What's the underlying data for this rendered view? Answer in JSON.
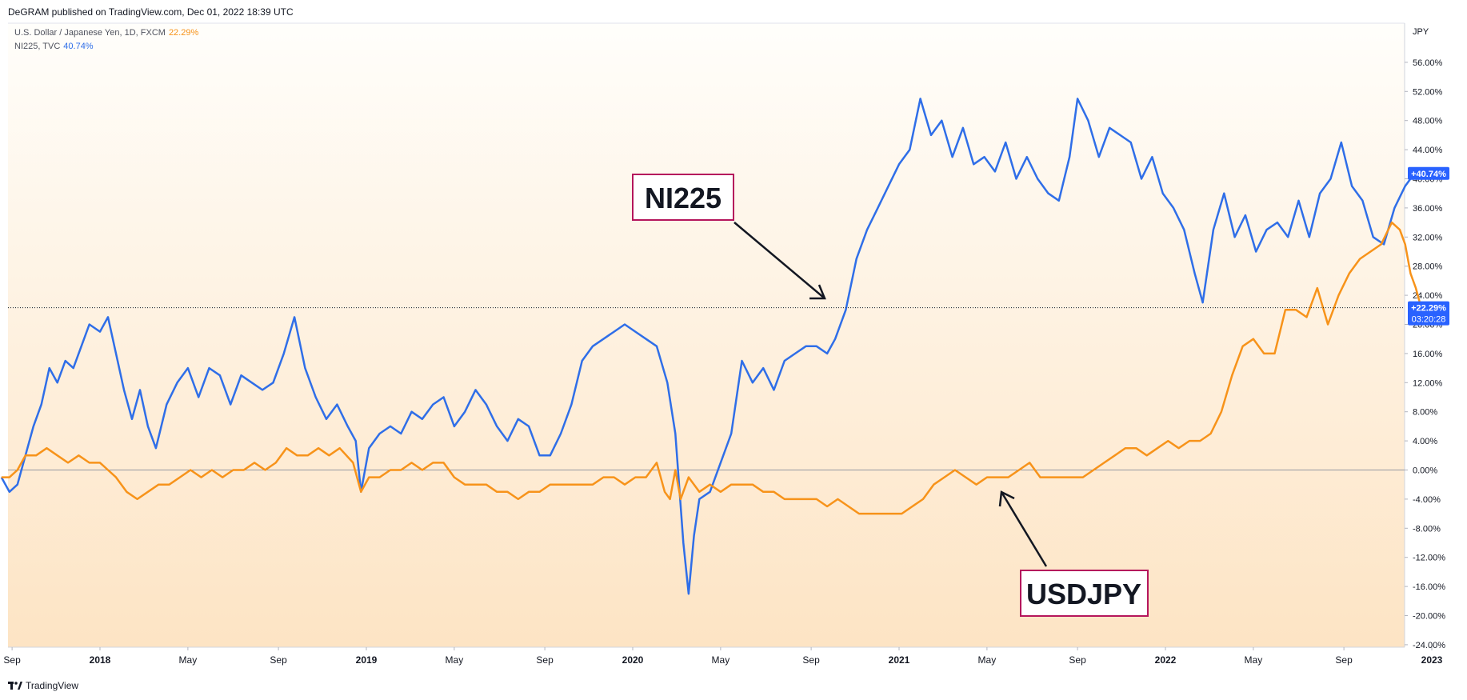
{
  "header": {
    "published": "DeGRAM published on TradingView.com, Dec 01, 2022 18:39 UTC"
  },
  "legend": [
    {
      "label": "U.S. Dollar / Japanese Yen, 1D, FXCM",
      "value": "22.29%",
      "color": "#f7931a"
    },
    {
      "label": "NI225, TVC",
      "value": "40.74%",
      "color": "#2f6ee8"
    }
  ],
  "axis": {
    "currency": "JPY"
  },
  "badges": {
    "ni225": "+40.74%",
    "usdjpy": "+22.29%",
    "countdown": "03:20:28"
  },
  "annotations": {
    "ni225": "NI225",
    "usdjpy": "USDJPY"
  },
  "footer": {
    "brand": "TradingView"
  },
  "colors": {
    "ni225": "#2f6ee8",
    "usdjpy": "#f7931a",
    "annotation_border": "#b5165c"
  },
  "chart_data": {
    "type": "line",
    "ylim": [
      -24,
      60
    ],
    "yticks": [
      "56.00%",
      "52.00%",
      "48.00%",
      "44.00%",
      "40.00%",
      "36.00%",
      "32.00%",
      "28.00%",
      "24.00%",
      "20.00%",
      "16.00%",
      "12.00%",
      "8.00%",
      "4.00%",
      "0.00%",
      "-4.00%",
      "-8.00%",
      "-12.00%",
      "-16.00%",
      "-20.00%",
      "-24.00%"
    ],
    "ytick_values": [
      56,
      52,
      48,
      44,
      40,
      36,
      32,
      28,
      24,
      20,
      16,
      12,
      8,
      4,
      0,
      -4,
      -8,
      -12,
      -16,
      -20,
      -24
    ],
    "xticks": [
      {
        "label": "Sep",
        "t": 2017.67
      },
      {
        "label": "2018",
        "t": 2018.0,
        "bold": true
      },
      {
        "label": "May",
        "t": 2018.33
      },
      {
        "label": "Sep",
        "t": 2018.67
      },
      {
        "label": "2019",
        "t": 2019.0,
        "bold": true
      },
      {
        "label": "May",
        "t": 2019.33
      },
      {
        "label": "Sep",
        "t": 2019.67
      },
      {
        "label": "2020",
        "t": 2020.0,
        "bold": true
      },
      {
        "label": "May",
        "t": 2020.33
      },
      {
        "label": "Sep",
        "t": 2020.67
      },
      {
        "label": "2021",
        "t": 2021.0,
        "bold": true
      },
      {
        "label": "May",
        "t": 2021.33
      },
      {
        "label": "Sep",
        "t": 2021.67
      },
      {
        "label": "2022",
        "t": 2022.0,
        "bold": true
      },
      {
        "label": "May",
        "t": 2022.33
      },
      {
        "label": "Sep",
        "t": 2022.67
      },
      {
        "label": "2023",
        "t": 2023.0,
        "bold": true
      }
    ],
    "series": [
      {
        "name": "NI225",
        "points": [
          [
            2017.63,
            -1
          ],
          [
            2017.66,
            -3
          ],
          [
            2017.69,
            -2
          ],
          [
            2017.72,
            2
          ],
          [
            2017.75,
            6
          ],
          [
            2017.78,
            9
          ],
          [
            2017.81,
            14
          ],
          [
            2017.84,
            12
          ],
          [
            2017.87,
            15
          ],
          [
            2017.9,
            14
          ],
          [
            2017.93,
            17
          ],
          [
            2017.96,
            20
          ],
          [
            2018.0,
            19
          ],
          [
            2018.03,
            21
          ],
          [
            2018.06,
            16
          ],
          [
            2018.09,
            11
          ],
          [
            2018.12,
            7
          ],
          [
            2018.15,
            11
          ],
          [
            2018.18,
            6
          ],
          [
            2018.21,
            3
          ],
          [
            2018.25,
            9
          ],
          [
            2018.29,
            12
          ],
          [
            2018.33,
            14
          ],
          [
            2018.37,
            10
          ],
          [
            2018.41,
            14
          ],
          [
            2018.45,
            13
          ],
          [
            2018.49,
            9
          ],
          [
            2018.53,
            13
          ],
          [
            2018.57,
            12
          ],
          [
            2018.61,
            11
          ],
          [
            2018.65,
            12
          ],
          [
            2018.69,
            16
          ],
          [
            2018.73,
            21
          ],
          [
            2018.77,
            14
          ],
          [
            2018.81,
            10
          ],
          [
            2018.85,
            7
          ],
          [
            2018.89,
            9
          ],
          [
            2018.93,
            6
          ],
          [
            2018.96,
            4
          ],
          [
            2018.98,
            -3
          ],
          [
            2019.01,
            3
          ],
          [
            2019.05,
            5
          ],
          [
            2019.09,
            6
          ],
          [
            2019.13,
            5
          ],
          [
            2019.17,
            8
          ],
          [
            2019.21,
            7
          ],
          [
            2019.25,
            9
          ],
          [
            2019.29,
            10
          ],
          [
            2019.33,
            6
          ],
          [
            2019.37,
            8
          ],
          [
            2019.41,
            11
          ],
          [
            2019.45,
            9
          ],
          [
            2019.49,
            6
          ],
          [
            2019.53,
            4
          ],
          [
            2019.57,
            7
          ],
          [
            2019.61,
            6
          ],
          [
            2019.65,
            2
          ],
          [
            2019.69,
            2
          ],
          [
            2019.73,
            5
          ],
          [
            2019.77,
            9
          ],
          [
            2019.81,
            15
          ],
          [
            2019.85,
            17
          ],
          [
            2019.89,
            18
          ],
          [
            2019.93,
            19
          ],
          [
            2019.97,
            20
          ],
          [
            2020.01,
            19
          ],
          [
            2020.05,
            18
          ],
          [
            2020.09,
            17
          ],
          [
            2020.13,
            12
          ],
          [
            2020.16,
            5
          ],
          [
            2020.19,
            -10
          ],
          [
            2020.21,
            -17
          ],
          [
            2020.23,
            -9
          ],
          [
            2020.25,
            -4
          ],
          [
            2020.29,
            -3
          ],
          [
            2020.33,
            1
          ],
          [
            2020.37,
            5
          ],
          [
            2020.41,
            15
          ],
          [
            2020.45,
            12
          ],
          [
            2020.49,
            14
          ],
          [
            2020.53,
            11
          ],
          [
            2020.57,
            15
          ],
          [
            2020.61,
            16
          ],
          [
            2020.65,
            17
          ],
          [
            2020.69,
            17
          ],
          [
            2020.73,
            16
          ],
          [
            2020.76,
            18
          ],
          [
            2020.8,
            22
          ],
          [
            2020.84,
            29
          ],
          [
            2020.88,
            33
          ],
          [
            2020.92,
            36
          ],
          [
            2020.96,
            39
          ],
          [
            2021.0,
            42
          ],
          [
            2021.04,
            44
          ],
          [
            2021.08,
            51
          ],
          [
            2021.12,
            46
          ],
          [
            2021.16,
            48
          ],
          [
            2021.2,
            43
          ],
          [
            2021.24,
            47
          ],
          [
            2021.28,
            42
          ],
          [
            2021.32,
            43
          ],
          [
            2021.36,
            41
          ],
          [
            2021.4,
            45
          ],
          [
            2021.44,
            40
          ],
          [
            2021.48,
            43
          ],
          [
            2021.52,
            40
          ],
          [
            2021.56,
            38
          ],
          [
            2021.6,
            37
          ],
          [
            2021.64,
            43
          ],
          [
            2021.67,
            51
          ],
          [
            2021.71,
            48
          ],
          [
            2021.75,
            43
          ],
          [
            2021.79,
            47
          ],
          [
            2021.83,
            46
          ],
          [
            2021.87,
            45
          ],
          [
            2021.91,
            40
          ],
          [
            2021.95,
            43
          ],
          [
            2021.99,
            38
          ],
          [
            2022.03,
            36
          ],
          [
            2022.07,
            33
          ],
          [
            2022.11,
            27
          ],
          [
            2022.14,
            23
          ],
          [
            2022.18,
            33
          ],
          [
            2022.22,
            38
          ],
          [
            2022.26,
            32
          ],
          [
            2022.3,
            35
          ],
          [
            2022.34,
            30
          ],
          [
            2022.38,
            33
          ],
          [
            2022.42,
            34
          ],
          [
            2022.46,
            32
          ],
          [
            2022.5,
            37
          ],
          [
            2022.54,
            32
          ],
          [
            2022.58,
            38
          ],
          [
            2022.62,
            40
          ],
          [
            2022.66,
            45
          ],
          [
            2022.7,
            39
          ],
          [
            2022.74,
            37
          ],
          [
            2022.78,
            32
          ],
          [
            2022.82,
            31
          ],
          [
            2022.86,
            36
          ],
          [
            2022.9,
            39
          ],
          [
            2022.94,
            41
          ],
          [
            2022.96,
            40.74
          ]
        ]
      },
      {
        "name": "USDJPY",
        "points": [
          [
            2017.63,
            -1
          ],
          [
            2017.66,
            -1
          ],
          [
            2017.69,
            0
          ],
          [
            2017.72,
            2
          ],
          [
            2017.76,
            2
          ],
          [
            2017.8,
            3
          ],
          [
            2017.84,
            2
          ],
          [
            2017.88,
            1
          ],
          [
            2017.92,
            2
          ],
          [
            2017.96,
            1
          ],
          [
            2018.0,
            1
          ],
          [
            2018.03,
            0
          ],
          [
            2018.06,
            -1
          ],
          [
            2018.1,
            -3
          ],
          [
            2018.14,
            -4
          ],
          [
            2018.18,
            -3
          ],
          [
            2018.22,
            -2
          ],
          [
            2018.26,
            -2
          ],
          [
            2018.3,
            -1
          ],
          [
            2018.34,
            0
          ],
          [
            2018.38,
            -1
          ],
          [
            2018.42,
            0
          ],
          [
            2018.46,
            -1
          ],
          [
            2018.5,
            0
          ],
          [
            2018.54,
            0
          ],
          [
            2018.58,
            1
          ],
          [
            2018.62,
            0
          ],
          [
            2018.66,
            1
          ],
          [
            2018.7,
            3
          ],
          [
            2018.74,
            2
          ],
          [
            2018.78,
            2
          ],
          [
            2018.82,
            3
          ],
          [
            2018.86,
            2
          ],
          [
            2018.9,
            3
          ],
          [
            2018.95,
            1
          ],
          [
            2018.98,
            -3
          ],
          [
            2019.01,
            -1
          ],
          [
            2019.05,
            -1
          ],
          [
            2019.09,
            0
          ],
          [
            2019.13,
            0
          ],
          [
            2019.17,
            1
          ],
          [
            2019.21,
            0
          ],
          [
            2019.25,
            1
          ],
          [
            2019.29,
            1
          ],
          [
            2019.33,
            -1
          ],
          [
            2019.37,
            -2
          ],
          [
            2019.41,
            -2
          ],
          [
            2019.45,
            -2
          ],
          [
            2019.49,
            -3
          ],
          [
            2019.53,
            -3
          ],
          [
            2019.57,
            -4
          ],
          [
            2019.61,
            -3
          ],
          [
            2019.65,
            -3
          ],
          [
            2019.69,
            -2
          ],
          [
            2019.73,
            -2
          ],
          [
            2019.77,
            -2
          ],
          [
            2019.81,
            -2
          ],
          [
            2019.85,
            -2
          ],
          [
            2019.89,
            -1
          ],
          [
            2019.93,
            -1
          ],
          [
            2019.97,
            -2
          ],
          [
            2020.01,
            -1
          ],
          [
            2020.05,
            -1
          ],
          [
            2020.09,
            1
          ],
          [
            2020.12,
            -3
          ],
          [
            2020.14,
            -4
          ],
          [
            2020.16,
            0
          ],
          [
            2020.18,
            -4
          ],
          [
            2020.21,
            -1
          ],
          [
            2020.25,
            -3
          ],
          [
            2020.29,
            -2
          ],
          [
            2020.33,
            -3
          ],
          [
            2020.37,
            -2
          ],
          [
            2020.41,
            -2
          ],
          [
            2020.45,
            -2
          ],
          [
            2020.49,
            -3
          ],
          [
            2020.53,
            -3
          ],
          [
            2020.57,
            -4
          ],
          [
            2020.61,
            -4
          ],
          [
            2020.65,
            -4
          ],
          [
            2020.69,
            -4
          ],
          [
            2020.73,
            -5
          ],
          [
            2020.77,
            -4
          ],
          [
            2020.81,
            -5
          ],
          [
            2020.85,
            -6
          ],
          [
            2020.89,
            -6
          ],
          [
            2020.93,
            -6
          ],
          [
            2020.97,
            -6
          ],
          [
            2021.01,
            -6
          ],
          [
            2021.05,
            -5
          ],
          [
            2021.09,
            -4
          ],
          [
            2021.13,
            -2
          ],
          [
            2021.17,
            -1
          ],
          [
            2021.21,
            0
          ],
          [
            2021.25,
            -1
          ],
          [
            2021.29,
            -2
          ],
          [
            2021.33,
            -1
          ],
          [
            2021.37,
            -1
          ],
          [
            2021.41,
            -1
          ],
          [
            2021.45,
            0
          ],
          [
            2021.49,
            1
          ],
          [
            2021.53,
            -1
          ],
          [
            2021.57,
            -1
          ],
          [
            2021.61,
            -1
          ],
          [
            2021.65,
            -1
          ],
          [
            2021.69,
            -1
          ],
          [
            2021.73,
            0
          ],
          [
            2021.77,
            1
          ],
          [
            2021.81,
            2
          ],
          [
            2021.85,
            3
          ],
          [
            2021.89,
            3
          ],
          [
            2021.93,
            2
          ],
          [
            2021.97,
            3
          ],
          [
            2022.01,
            4
          ],
          [
            2022.05,
            3
          ],
          [
            2022.09,
            4
          ],
          [
            2022.13,
            4
          ],
          [
            2022.17,
            5
          ],
          [
            2022.21,
            8
          ],
          [
            2022.25,
            13
          ],
          [
            2022.29,
            17
          ],
          [
            2022.33,
            18
          ],
          [
            2022.37,
            16
          ],
          [
            2022.41,
            16
          ],
          [
            2022.45,
            22
          ],
          [
            2022.49,
            22
          ],
          [
            2022.53,
            21
          ],
          [
            2022.57,
            25
          ],
          [
            2022.61,
            20
          ],
          [
            2022.65,
            24
          ],
          [
            2022.69,
            27
          ],
          [
            2022.73,
            29
          ],
          [
            2022.77,
            30
          ],
          [
            2022.81,
            31
          ],
          [
            2022.85,
            34
          ],
          [
            2022.88,
            33
          ],
          [
            2022.9,
            31
          ],
          [
            2022.92,
            27
          ],
          [
            2022.94,
            25
          ],
          [
            2022.96,
            22.29
          ]
        ]
      }
    ]
  }
}
